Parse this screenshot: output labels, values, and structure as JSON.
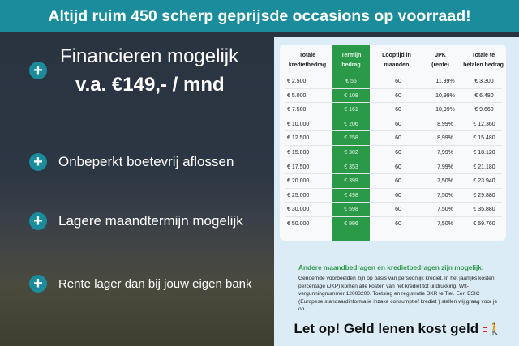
{
  "banner": {
    "title": "Altijd ruim 450 scherp geprijsde occasions op voorraad!"
  },
  "colors": {
    "accent": "#1a8c9c",
    "green": "#2a9a48"
  },
  "benefits": [
    {
      "line1": "Financieren mogelijk",
      "line2": "v.a. €149,- / mnd"
    },
    {
      "label": "Onbeperkt boetevrij aflossen"
    },
    {
      "label": "Lagere maandtermijn mogelijk"
    },
    {
      "label": "Rente lager dan bij jouw eigen bank"
    }
  ],
  "table": {
    "headers": [
      "Totale kredietbedrag",
      "Termijn bedrag",
      "Looptijd in maanden",
      "JPK (rente)",
      "Totale te betalen bedrag"
    ],
    "rows": [
      [
        "€ 2.500",
        "€ 55",
        "60",
        "11,99%",
        "€ 3.300"
      ],
      [
        "€ 5.000",
        "€ 108",
        "60",
        "10,99%",
        "€ 6.480"
      ],
      [
        "€ 7.500",
        "€ 161",
        "60",
        "10,99%",
        "€ 9.660"
      ],
      [
        "€ 10.000",
        "€ 206",
        "60",
        "8,99%",
        "€ 12.360"
      ],
      [
        "€ 12.500",
        "€ 258",
        "60",
        "8,99%",
        "€ 15.480"
      ],
      [
        "€ 15.000",
        "€ 302",
        "60",
        "7,99%",
        "€ 18.120"
      ],
      [
        "€ 17.500",
        "€ 353",
        "60",
        "7,99%",
        "€ 21.180"
      ],
      [
        "€ 20.000",
        "€ 399",
        "60",
        "7,50%",
        "€ 23.940"
      ],
      [
        "€ 25.000",
        "€ 498",
        "60",
        "7,50%",
        "€ 29.880"
      ],
      [
        "€ 30.000",
        "€ 598",
        "60",
        "7,50%",
        "€ 35.880"
      ],
      [
        "€ 50.000",
        "€ 996",
        "60",
        "7,50%",
        "€ 59.760"
      ]
    ]
  },
  "note": {
    "heading": "Andere maandbedragen en kredietbedragen zijn mogelijk.",
    "body": "Genoemde voorbeelden zijn op basis van persoonlijk krediet. In het jaarlijks kosten percentage (JKP) komen alle kosten van het krediet tot uitdrukking. Wft-vergunningnummer 12003200. Toetsing en registratie BKR te Tiel. Een ESIC (Europese standaardinformatie inzake consumptief krediet ) stellen wij graag voor je op."
  },
  "warning": {
    "text": "Let op! Geld lenen kost geld",
    "icon": "person-with-ball-and-chain-icon"
  }
}
